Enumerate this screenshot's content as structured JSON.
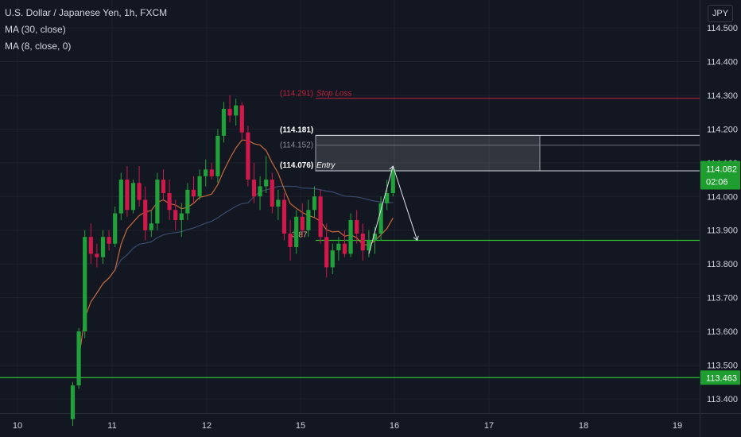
{
  "legend": {
    "symbol": "U.S. Dollar / Japanese Yen, 1h, FXCM",
    "ma1": "MA (30, close)",
    "ma2": "MA (8, close, 0)"
  },
  "currency_button": "JPY",
  "price_tags": {
    "current_price": "114.082",
    "countdown": "02:06",
    "support_price": "113.463"
  },
  "annotations": {
    "stop_loss_price": "(114.291)",
    "stop_loss_label": "Stop Loss",
    "upper_price": "(114.181)",
    "zone_price": "(114.152)",
    "entry_price": "(114.076)",
    "entry_label": "Entry",
    "target_label": "3.87"
  },
  "colors": {
    "background": "#131722",
    "up": "#26a69a",
    "up_candle": "#21a13a",
    "down_candle": "#d1184a",
    "ma30": "#3b4a6b",
    "ma8": "#c9683a",
    "stop_loss": "#c2203d",
    "target": "#2fbf2f",
    "price_tag_green": "#1e9e2e",
    "grid": "#1e222d"
  },
  "chart_data": {
    "type": "candlestick",
    "y_axis_ticks": [
      "114.500",
      "114.400",
      "114.300",
      "114.200",
      "114.100",
      "114.000",
      "113.900",
      "113.800",
      "113.700",
      "113.600",
      "113.500",
      "113.400"
    ],
    "x_axis_ticks": [
      "10",
      "11",
      "12",
      "15",
      "16",
      "17",
      "18",
      "19"
    ],
    "ylim": [
      113.37,
      114.55
    ],
    "levels": {
      "stop_loss": 114.291,
      "zone_top": 114.181,
      "zone_mid": 114.152,
      "entry": 114.076,
      "target": 113.87,
      "support": 113.463
    },
    "series": [
      {
        "name": "USDJPY",
        "ohlc": [
          [
            113.34,
            113.45,
            113.32,
            113.44
          ],
          [
            113.44,
            113.61,
            113.43,
            113.6
          ],
          [
            113.6,
            113.9,
            113.58,
            113.88
          ],
          [
            113.88,
            113.92,
            113.8,
            113.83
          ],
          [
            113.83,
            113.86,
            113.79,
            113.82
          ],
          [
            113.82,
            113.9,
            113.8,
            113.88
          ],
          [
            113.88,
            113.9,
            113.84,
            113.86
          ],
          [
            113.86,
            113.97,
            113.85,
            113.95
          ],
          [
            113.95,
            114.07,
            113.93,
            114.05
          ],
          [
            114.05,
            114.09,
            113.94,
            113.96
          ],
          [
            113.96,
            114.05,
            113.95,
            114.04
          ],
          [
            114.04,
            114.09,
            113.97,
            113.99
          ],
          [
            113.99,
            114.03,
            113.87,
            113.9
          ],
          [
            113.9,
            113.96,
            113.88,
            113.92
          ],
          [
            113.92,
            114.07,
            113.9,
            114.05
          ],
          [
            114.05,
            114.08,
            113.99,
            114.01
          ],
          [
            114.01,
            114.05,
            113.93,
            113.96
          ],
          [
            113.96,
            113.99,
            113.9,
            113.93
          ],
          [
            113.93,
            113.98,
            113.88,
            113.95
          ],
          [
            113.95,
            114.04,
            113.93,
            114.02
          ],
          [
            114.02,
            114.06,
            113.98,
            114.0
          ],
          [
            114.0,
            114.08,
            113.99,
            114.06
          ],
          [
            114.06,
            114.11,
            114.03,
            114.08
          ],
          [
            114.08,
            114.1,
            114.05,
            114.06
          ],
          [
            114.06,
            114.2,
            114.04,
            114.18
          ],
          [
            114.18,
            114.28,
            114.16,
            114.26
          ],
          [
            114.26,
            114.3,
            114.22,
            114.24
          ],
          [
            114.24,
            114.29,
            114.21,
            114.27
          ],
          [
            114.27,
            114.28,
            114.17,
            114.19
          ],
          [
            114.19,
            114.21,
            114.03,
            114.05
          ],
          [
            114.05,
            114.1,
            113.98,
            114.0
          ],
          [
            114.0,
            114.06,
            113.96,
            114.03
          ],
          [
            114.03,
            114.12,
            114.01,
            114.05
          ],
          [
            114.05,
            114.07,
            113.95,
            113.97
          ],
          [
            113.97,
            114.02,
            113.93,
            113.99
          ],
          [
            113.99,
            114.01,
            113.87,
            113.89
          ],
          [
            113.89,
            113.93,
            113.81,
            113.85
          ],
          [
            113.85,
            113.96,
            113.83,
            113.94
          ],
          [
            113.94,
            113.98,
            113.88,
            113.9
          ],
          [
            113.9,
            113.99,
            113.88,
            113.96
          ],
          [
            113.96,
            114.03,
            113.94,
            114.0
          ],
          [
            114.0,
            114.02,
            113.86,
            113.88
          ],
          [
            113.88,
            113.92,
            113.76,
            113.79
          ],
          [
            113.79,
            113.86,
            113.77,
            113.84
          ],
          [
            113.84,
            113.88,
            113.81,
            113.86
          ],
          [
            113.86,
            113.9,
            113.82,
            113.83
          ],
          [
            113.83,
            113.95,
            113.82,
            113.93
          ],
          [
            113.93,
            113.96,
            113.86,
            113.89
          ],
          [
            113.89,
            113.92,
            113.81,
            113.84
          ],
          [
            113.84,
            113.9,
            113.82,
            113.87
          ],
          [
            113.87,
            113.91,
            113.83,
            113.89
          ],
          [
            113.89,
            114.0,
            113.87,
            113.98
          ],
          [
            113.98,
            114.05,
            113.96,
            114.01
          ],
          [
            114.01,
            114.09,
            114.0,
            114.08
          ]
        ]
      },
      {
        "name": "MA (30, close)"
      },
      {
        "name": "MA (8, close, 0)"
      }
    ],
    "drawings": {
      "projection": [
        {
          "from": [
            49,
            113.83
          ],
          "to": [
            53,
            114.09
          ]
        },
        {
          "from": [
            53,
            114.09
          ],
          "to": [
            57,
            113.87
          ]
        }
      ]
    }
  }
}
